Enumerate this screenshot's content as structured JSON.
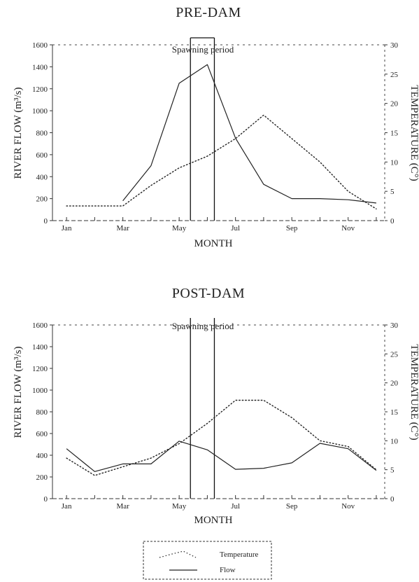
{
  "chart_data": [
    {
      "type": "line",
      "title": "PRE-DAM",
      "xlabel": "MONTH",
      "ylabel_left": "RIVER FLOW (m³/s)",
      "ylabel_right": "TEMPERATURE (C°)",
      "x_tick_labels": [
        "Jan",
        "Mar",
        "May",
        "Jul",
        "Sep",
        "Nov"
      ],
      "xlim": [
        0.5,
        12.3
      ],
      "ylim_left": [
        0,
        1600
      ],
      "ylim_right": [
        0,
        30
      ],
      "left_ticks": [
        0,
        200,
        400,
        600,
        800,
        1000,
        1200,
        1400,
        1600
      ],
      "right_ticks": [
        0,
        5,
        10,
        15,
        20,
        25,
        30
      ],
      "annotation": "Spawning period",
      "spawning_period": [
        5.4,
        6.25
      ],
      "series": [
        {
          "name": "Flow",
          "axis": "left",
          "style": "solid",
          "x": [
            3,
            4,
            5,
            6,
            7,
            8,
            9,
            10,
            11,
            12
          ],
          "values": [
            180,
            500,
            1250,
            1420,
            750,
            330,
            200,
            200,
            190,
            160
          ]
        },
        {
          "name": "Temperature",
          "axis": "right",
          "style": "dotted",
          "x": [
            1,
            2,
            3,
            4,
            5,
            6,
            7,
            8,
            9,
            10,
            11,
            12
          ],
          "values": [
            2.5,
            2.5,
            2.5,
            6,
            9,
            11,
            14,
            18,
            14,
            10,
            5,
            2
          ]
        }
      ]
    },
    {
      "type": "line",
      "title": "POST-DAM",
      "xlabel": "MONTH",
      "ylabel_left": "RIVER FLOW (m³/s)",
      "ylabel_right": "TEMPERATURE (C°)",
      "x_tick_labels": [
        "Jan",
        "Mar",
        "May",
        "Jul",
        "Sep",
        "Nov"
      ],
      "xlim": [
        0.5,
        12.3
      ],
      "ylim_left": [
        0,
        1600
      ],
      "ylim_right": [
        0,
        30
      ],
      "left_ticks": [
        0,
        200,
        400,
        600,
        800,
        1000,
        1200,
        1400,
        1600
      ],
      "right_ticks": [
        0,
        5,
        10,
        15,
        20,
        25,
        30
      ],
      "annotation": "Spawning period",
      "spawning_period": [
        5.4,
        6.25
      ],
      "series": [
        {
          "name": "Flow",
          "axis": "left",
          "style": "solid",
          "x": [
            1,
            2,
            3,
            4,
            5,
            6,
            7,
            8,
            9,
            10,
            11,
            12
          ],
          "values": [
            460,
            250,
            320,
            320,
            530,
            450,
            270,
            280,
            330,
            510,
            460,
            260
          ]
        },
        {
          "name": "Temperature",
          "axis": "right",
          "style": "dotted",
          "x": [
            1,
            2,
            3,
            4,
            5,
            6,
            7,
            8,
            9,
            10,
            11,
            12
          ],
          "values": [
            7,
            4,
            5.5,
            7,
            9.5,
            13,
            17,
            17,
            14,
            10,
            9,
            5
          ]
        }
      ]
    }
  ],
  "legend": {
    "items": [
      {
        "label": "Temperature",
        "style": "dotted"
      },
      {
        "label": "Flow",
        "style": "solid"
      }
    ]
  }
}
